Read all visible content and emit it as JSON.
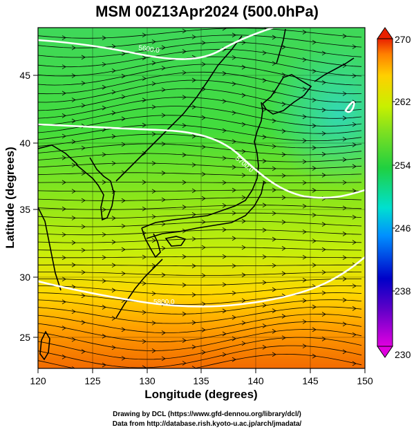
{
  "title": "MSM 00Z13Apr2024 (500.0hPa)",
  "x_axis": {
    "label": "Longitude (degrees)",
    "ticks": [
      "120",
      "125",
      "130",
      "135",
      "140",
      "145",
      "150"
    ],
    "range": [
      120,
      150
    ]
  },
  "y_axis": {
    "label": "Latitude  (degrees)",
    "ticks": [
      "25",
      "30",
      "35",
      "40",
      "45"
    ],
    "range": [
      22.5,
      47.5
    ]
  },
  "colorbar": {
    "ticks": [
      "270",
      "262",
      "254",
      "246",
      "238",
      "230"
    ],
    "range": [
      230,
      270
    ],
    "colors": [
      "#e000e0",
      "#0000c8",
      "#0090ff",
      "#00e0d0",
      "#20d040",
      "#c8f000",
      "#ffd000",
      "#ff8000",
      "#e82000"
    ]
  },
  "contours": [
    {
      "label": "5600.0",
      "approx_lat": "44-47"
    },
    {
      "label": "5700.0",
      "approx_lat": "36-41"
    },
    {
      "label": "5800.0",
      "approx_lat": "27-30"
    }
  ],
  "credits": {
    "line1": "Drawing by DCL (https://www.gfd-dennou.org/library/dcl/)",
    "line2": "Data from http://database.rish.kyoto-u.ac.jp/arch/jmadata/"
  }
}
